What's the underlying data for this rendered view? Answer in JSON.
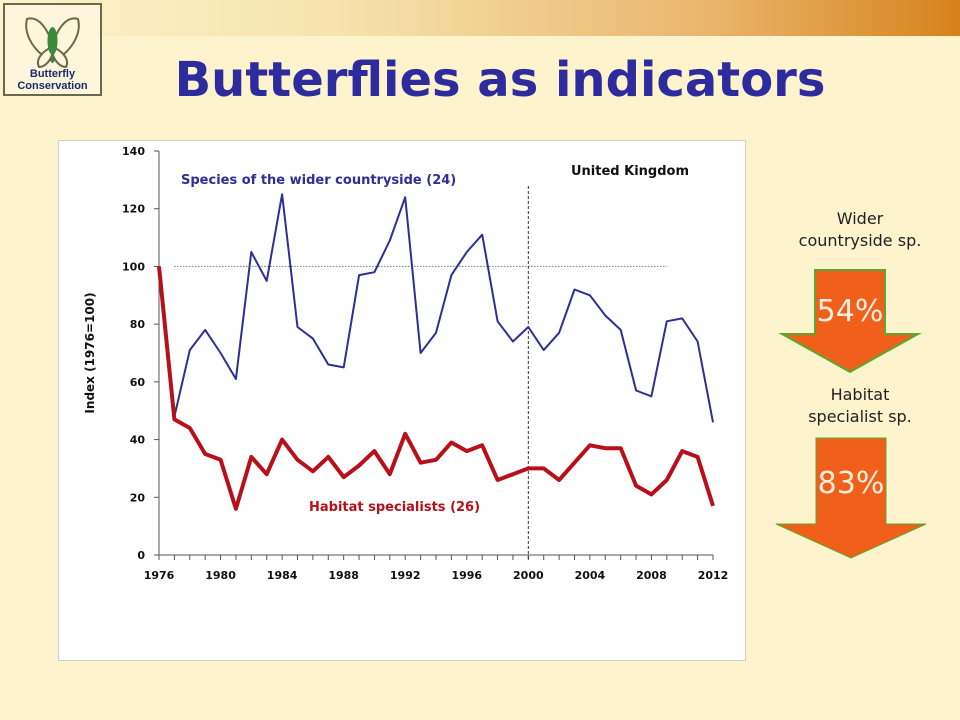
{
  "title": "Butterflies as indicators",
  "logo": {
    "line1": "Butterfly",
    "line2": "Conservation"
  },
  "indicators": [
    {
      "label_line1": "Wider",
      "label_line2": "countryside sp.",
      "percent": "54%",
      "color": "#f0601a"
    },
    {
      "label_line1": "Habitat",
      "label_line2": "specialist sp.",
      "percent": "83%",
      "color": "#f0601a"
    }
  ],
  "colors": {
    "title": "#2e2b9e",
    "wider_series": "#2e2e96",
    "specialist_series": "#b8101a",
    "arrow": "#f0601a",
    "arrow_outline": "#5aa830"
  },
  "chart_data": {
    "type": "line",
    "region_label": "United Kingdom",
    "ylabel": "Index (1976=100)",
    "xlabel": "",
    "xlim": [
      1976,
      2012
    ],
    "ylim": [
      0,
      140
    ],
    "yticks": [
      0,
      20,
      40,
      60,
      80,
      100,
      120,
      140
    ],
    "xticks": [
      1976,
      1980,
      1984,
      1988,
      1992,
      1996,
      2000,
      2004,
      2008,
      2012
    ],
    "reference_line": {
      "y": 100,
      "x_start": 1977,
      "x_end": 2009,
      "style": "dotted"
    },
    "vertical_marker": {
      "x": 2000,
      "style": "dashed"
    },
    "x": [
      1976,
      1977,
      1978,
      1979,
      1980,
      1981,
      1982,
      1983,
      1984,
      1985,
      1986,
      1987,
      1988,
      1989,
      1990,
      1991,
      1992,
      1993,
      1994,
      1995,
      1996,
      1997,
      1998,
      1999,
      2000,
      2001,
      2002,
      2003,
      2004,
      2005,
      2006,
      2007,
      2008,
      2009,
      2010,
      2011,
      2012
    ],
    "series": [
      {
        "name": "Species of the wider countryside (24)",
        "values": [
          100,
          48,
          71,
          78,
          70,
          61,
          105,
          95,
          125,
          79,
          75,
          66,
          65,
          97,
          98,
          109,
          124,
          70,
          77,
          97,
          105,
          111,
          81,
          74,
          79,
          71,
          77,
          92,
          90,
          83,
          78,
          57,
          55,
          81,
          82,
          74,
          46
        ]
      },
      {
        "name": "Habitat specialists (26)",
        "values": [
          100,
          47,
          44,
          35,
          33,
          16,
          34,
          28,
          40,
          33,
          29,
          34,
          27,
          31,
          36,
          28,
          42,
          32,
          33,
          39,
          36,
          38,
          26,
          28,
          30,
          30,
          26,
          32,
          38,
          37,
          37,
          24,
          21,
          26,
          36,
          34,
          17
        ]
      }
    ]
  }
}
